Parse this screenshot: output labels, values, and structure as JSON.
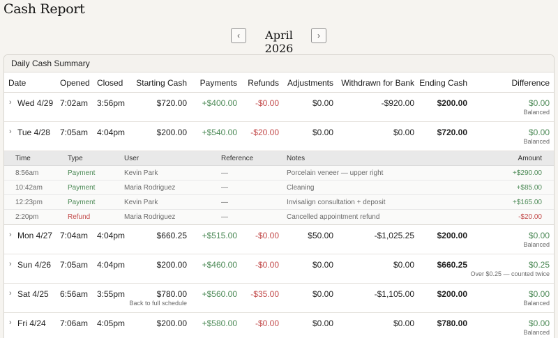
{
  "page": {
    "title": "Cash Report"
  },
  "month_nav": {
    "prev_icon": "chevron-left-icon",
    "next_icon": "chevron-right-icon",
    "prev_glyph": "‹",
    "next_glyph": "›",
    "label": "April 2026"
  },
  "summary": {
    "title": "Daily Cash Summary",
    "columns": [
      "Date",
      "Opened",
      "Closed",
      "Starting Cash",
      "Payments",
      "Refunds",
      "Adjustments",
      "Withdrawn for Bank",
      "Ending Cash",
      "Difference"
    ],
    "expand_glyph": "›",
    "rows": [
      {
        "date": "Wed 4/29",
        "opened": "7:02am",
        "closed": "3:56pm",
        "closed_note": "",
        "starting": "$720.00",
        "payments": "+$400.00",
        "refunds": "-$0.00",
        "adjustments": "$0.00",
        "withdrawn": "-$920.00",
        "ending": "$200.00",
        "difference": "$0.00",
        "status": "Balanced"
      },
      {
        "date": "Tue 4/28",
        "opened": "7:05am",
        "closed": "4:04pm",
        "closed_note": "",
        "starting": "$200.00",
        "payments": "+$540.00",
        "refunds": "-$20.00",
        "adjustments": "$0.00",
        "withdrawn": "$0.00",
        "ending": "$720.00",
        "difference": "$0.00",
        "status": "Balanced"
      },
      {
        "date": "Mon 4/27",
        "opened": "7:04am",
        "closed": "4:04pm",
        "closed_note": "",
        "starting": "$660.25",
        "payments": "+$515.00",
        "refunds": "-$0.00",
        "adjustments": "$50.00",
        "withdrawn": "-$1,025.25",
        "ending": "$200.00",
        "difference": "$0.00",
        "status": "Balanced"
      },
      {
        "date": "Sun 4/26",
        "opened": "7:05am",
        "closed": "4:04pm",
        "closed_note": "",
        "starting": "$200.00",
        "payments": "+$460.00",
        "refunds": "-$0.00",
        "adjustments": "$0.00",
        "withdrawn": "$0.00",
        "ending": "$660.25",
        "difference": "$0.25",
        "status": "Over $0.25 — counted twice"
      },
      {
        "date": "Sat 4/25",
        "opened": "6:56am",
        "closed": "3:55pm",
        "closed_note": "Back to full schedule",
        "starting": "$780.00",
        "payments": "+$560.00",
        "refunds": "-$35.00",
        "adjustments": "$0.00",
        "withdrawn": "-$1,105.00",
        "ending": "$200.00",
        "difference": "$0.00",
        "status": "Balanced"
      },
      {
        "date": "Fri 4/24",
        "opened": "7:06am",
        "closed": "4:05pm",
        "closed_note": "",
        "starting": "$200.00",
        "payments": "+$580.00",
        "refunds": "-$0.00",
        "adjustments": "$0.00",
        "withdrawn": "$0.00",
        "ending": "$780.00",
        "difference": "$0.00",
        "status": "Balanced"
      }
    ]
  },
  "detail": {
    "columns": [
      "Time",
      "Type",
      "User",
      "Reference",
      "Notes",
      "Amount"
    ],
    "rows": [
      {
        "time": "8:56am",
        "type": "Payment",
        "user": "Kevin Park",
        "reference": "—",
        "notes": "Porcelain veneer — upper right",
        "amount": "+$290.00"
      },
      {
        "time": "10:42am",
        "type": "Payment",
        "user": "Maria Rodriguez",
        "reference": "—",
        "notes": "Cleaning",
        "amount": "+$85.00"
      },
      {
        "time": "12:23pm",
        "type": "Payment",
        "user": "Kevin Park",
        "reference": "—",
        "notes": "Invisalign consultation + deposit",
        "amount": "+$165.00"
      },
      {
        "time": "2:20pm",
        "type": "Refund",
        "user": "Maria Rodriguez",
        "reference": "—",
        "notes": "Cancelled appointment refund",
        "amount": "-$20.00"
      }
    ]
  },
  "colors": {
    "positive": "#4d8a57",
    "negative": "#c24a4a"
  }
}
